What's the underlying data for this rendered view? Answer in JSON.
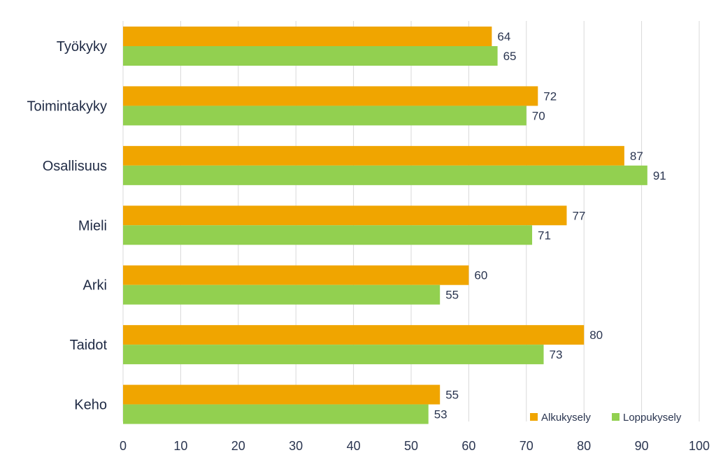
{
  "chart_data": {
    "type": "bar",
    "orientation": "horizontal",
    "categories": [
      "Työkyky",
      "Toimintakyky",
      "Osallisuus",
      "Mieli",
      "Arki",
      "Taidot",
      "Keho"
    ],
    "series": [
      {
        "name": "Alkukysely",
        "color": "#F0A500",
        "values": [
          64,
          72,
          87,
          77,
          60,
          80,
          55
        ]
      },
      {
        "name": "Loppukysely",
        "color": "#92D050",
        "values": [
          65,
          70,
          91,
          71,
          55,
          73,
          53
        ]
      }
    ],
    "xlim": [
      0,
      100
    ],
    "xticks": [
      "0",
      "10",
      "20",
      "30",
      "40",
      "50",
      "60",
      "70",
      "80",
      "90",
      "100"
    ],
    "grid": true,
    "legend_position": "bottom-right",
    "data_labels": true
  }
}
